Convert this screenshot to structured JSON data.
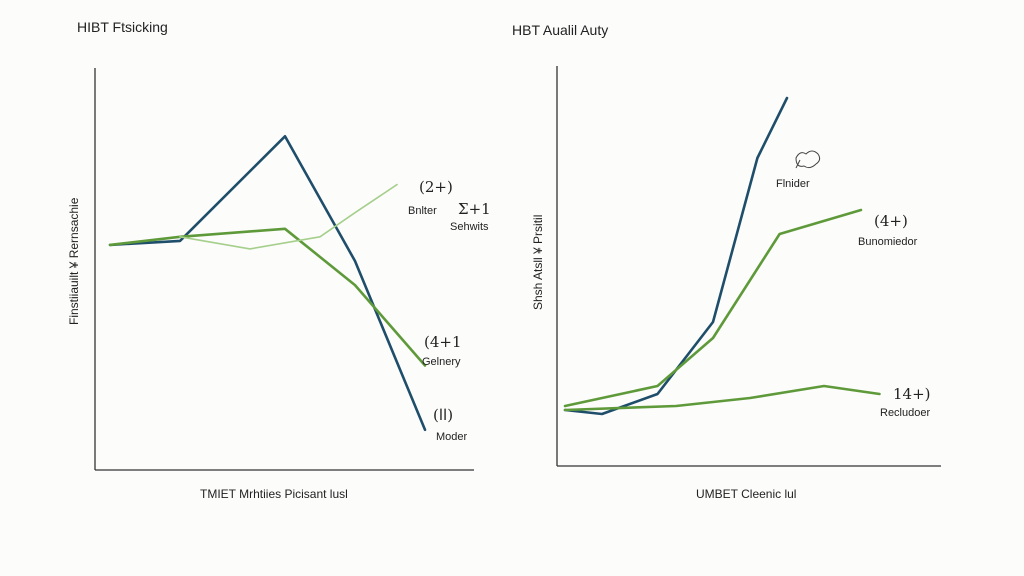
{
  "chart_data": [
    {
      "type": "line",
      "title": "HIBT Ftsicking",
      "xlabel": "TMIET Mrhtiies Picisant lusl",
      "ylabel": "Finstiiauilt ¥ Rernsachie",
      "xlim": [
        0,
        100
      ],
      "ylim": [
        0,
        100
      ],
      "grid": false,
      "series": [
        {
          "color": "#1f4e6b",
          "x": [
            0,
            20,
            50,
            70,
            90
          ],
          "y": [
            56,
            57,
            83,
            52,
            10
          ]
        },
        {
          "color": "#5f9a3a",
          "x": [
            0,
            20,
            50,
            70,
            90
          ],
          "y": [
            56,
            58,
            60,
            46,
            26
          ]
        },
        {
          "color": "#a6cf8c",
          "x": [
            20,
            40,
            60,
            70,
            82
          ],
          "y": [
            58,
            55,
            58,
            64,
            71
          ]
        }
      ],
      "annotations": [
        {
          "value": "(2+)",
          "label": "Bnlter"
        },
        {
          "value": "Ʃ+1",
          "label": "Sehwits"
        },
        {
          "value": "(4+1",
          "label": "Gelnery"
        },
        {
          "value": "(اا)",
          "label": "Moder"
        }
      ]
    },
    {
      "type": "line",
      "title": "HBT Aualil Auty",
      "xlabel": "UMBET Cleenic lul",
      "ylabel": "Shsh Atsll ¥ Prsitil",
      "xlim": [
        0,
        100
      ],
      "ylim": [
        0,
        100
      ],
      "grid": false,
      "series": [
        {
          "color": "#1f4e6b",
          "x": [
            0,
            10,
            25,
            40,
            52,
            60
          ],
          "y": [
            14,
            13,
            18,
            36,
            77,
            92
          ]
        },
        {
          "color": "#5f9a3a",
          "x": [
            0,
            25,
            40,
            58,
            80
          ],
          "y": [
            15,
            20,
            32,
            58,
            64
          ]
        },
        {
          "color": "#5f9a3a",
          "x": [
            0,
            30,
            50,
            70,
            85
          ],
          "y": [
            14,
            15,
            17,
            20,
            18
          ]
        }
      ],
      "annotations": [
        {
          "value": "",
          "label": "Flnider"
        },
        {
          "value": "(4+)",
          "label": "Bunomiedor"
        },
        {
          "value": "14+)",
          "label": "Recludoer"
        }
      ]
    }
  ]
}
